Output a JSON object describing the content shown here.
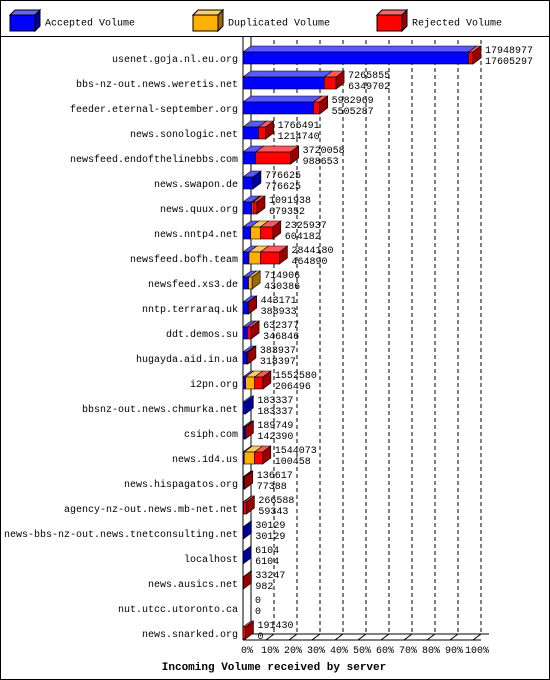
{
  "chart_data": {
    "type": "bar3d_stacked_horizontal",
    "xlabel": "Incoming Volume received by server",
    "categories": [
      "usenet.goja.nl.eu.org",
      "bbs-nz-out.news.weretis.net",
      "feeder.eternal-september.org",
      "news.sonologic.net",
      "newsfeed.endofthelinebbs.com",
      "news.swapon.de",
      "news.quux.org",
      "news.nntp4.net",
      "newsfeed.bofh.team",
      "newsfeed.xs3.de",
      "nntp.terraraq.uk",
      "ddt.demos.su",
      "hugayda.aid.in.ua",
      "i2pn.org",
      "bbsnz-out.news.chmurka.net",
      "csiph.com",
      "news.1d4.us",
      "news.hispagatos.org",
      "agency-nz-out.news.mb-net.net",
      "news-bbs-nz-out.news.tnetconsulting.net",
      "localhost",
      "news.ausics.net",
      "nut.utcc.utoronto.ca",
      "news.snarked.org"
    ],
    "totals": [
      17948977,
      7265855,
      5982969,
      1766491,
      3720058,
      776625,
      1091938,
      2325937,
      2844180,
      714906,
      443171,
      632377,
      383937,
      1552580,
      183337,
      189749,
      1544073,
      136617,
      266588,
      30129,
      6104,
      33247,
      0,
      191430
    ],
    "series": [
      {
        "name": "Accepted Volume",
        "color": "#0000ff",
        "values": [
          17605297,
          6349702,
          5505287,
          1214740,
          988653,
          776625,
          679352,
          604182,
          464890,
          430386,
          388933,
          346846,
          318397,
          206496,
          183337,
          142390,
          100458,
          77388,
          59343,
          30129,
          6104,
          982,
          0,
          0
        ]
      },
      {
        "name": "Duplicated Volume",
        "color": "#ffb000",
        "values": [
          0,
          0,
          0,
          0,
          0,
          0,
          100000,
          750000,
          900000,
          284520,
          0,
          0,
          0,
          700000,
          0,
          0,
          800000,
          0,
          0,
          0,
          0,
          0,
          0,
          0
        ]
      },
      {
        "name": "Rejected Volume",
        "color": "#ff0000",
        "values": [
          343680,
          916153,
          477682,
          551751,
          2731405,
          0,
          312586,
          971755,
          1479290,
          0,
          54238,
          285531,
          65540,
          646084,
          0,
          47359,
          643615,
          59229,
          207245,
          0,
          0,
          32265,
          0,
          191430
        ]
      }
    ],
    "xlim": [
      0,
      17948977
    ],
    "xticks": [
      {
        "value": 0,
        "label": "0%"
      },
      {
        "value": 1794897.7,
        "label": "10%"
      },
      {
        "value": 3589795.4,
        "label": "20%"
      },
      {
        "value": 5384693.1,
        "label": "30%"
      },
      {
        "value": 7179590.8,
        "label": "40%"
      },
      {
        "value": 8974488.5,
        "label": "50%"
      },
      {
        "value": 10769386.2,
        "label": "60%"
      },
      {
        "value": 12564283.9,
        "label": "70%"
      },
      {
        "value": 14359181.6,
        "label": "80%"
      },
      {
        "value": 16154079.3,
        "label": "90%"
      },
      {
        "value": 17948977,
        "label": "100%"
      }
    ],
    "grid": true
  }
}
